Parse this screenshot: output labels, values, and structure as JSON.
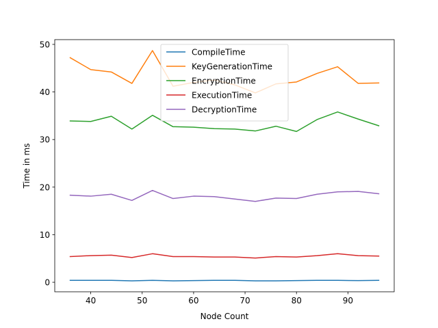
{
  "chart_data": {
    "type": "line",
    "title": "",
    "xlabel": "Node Count",
    "ylabel": "Time in ms",
    "xlim": [
      33,
      99
    ],
    "ylim": [
      -2,
      51
    ],
    "xticks": [
      40,
      50,
      60,
      70,
      80,
      90
    ],
    "yticks": [
      0,
      10,
      20,
      30,
      40,
      50
    ],
    "grid": false,
    "legend_position": "top-center",
    "x": [
      36,
      40,
      44,
      48,
      52,
      56,
      60,
      64,
      68,
      72,
      76,
      80,
      84,
      88,
      92,
      96
    ],
    "series": [
      {
        "name": "CompileTime",
        "color": "#1f77b4",
        "values": [
          0.4,
          0.4,
          0.4,
          0.3,
          0.4,
          0.3,
          0.35,
          0.4,
          0.4,
          0.3,
          0.3,
          0.35,
          0.4,
          0.4,
          0.35,
          0.4
        ]
      },
      {
        "name": "KeyGenerationTime",
        "color": "#ff7f0e",
        "values": [
          47.2,
          44.7,
          44.2,
          41.8,
          48.7,
          41.2,
          42.0,
          42.5,
          41.5,
          39.8,
          41.7,
          42.1,
          43.9,
          45.3,
          41.8,
          41.9
        ]
      },
      {
        "name": "EncryptionTime",
        "color": "#2ca02c",
        "values": [
          33.9,
          33.8,
          34.9,
          32.2,
          35.1,
          32.7,
          32.6,
          32.3,
          32.2,
          31.8,
          32.8,
          31.7,
          34.2,
          35.8,
          34.3,
          32.9
        ]
      },
      {
        "name": "ExecutionTime",
        "color": "#d62728",
        "values": [
          5.4,
          5.6,
          5.7,
          5.2,
          6.0,
          5.4,
          5.4,
          5.3,
          5.3,
          5.1,
          5.4,
          5.3,
          5.6,
          6.0,
          5.6,
          5.5
        ]
      },
      {
        "name": "DecryptionTime",
        "color": "#9467bd",
        "values": [
          18.3,
          18.1,
          18.5,
          17.2,
          19.3,
          17.6,
          18.1,
          18.0,
          17.5,
          17.0,
          17.7,
          17.6,
          18.5,
          19.0,
          19.1,
          18.6
        ]
      }
    ]
  }
}
